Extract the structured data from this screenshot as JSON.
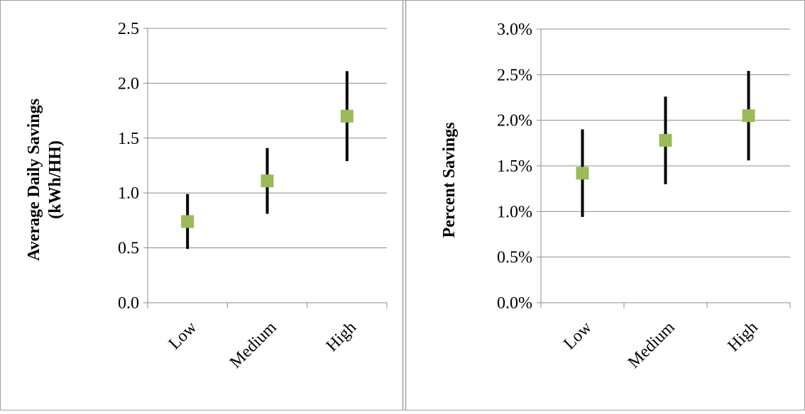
{
  "chart_data": [
    {
      "type": "errorbar",
      "ylabel": [
        "Average Daily Savings",
        "(kWh/HH)"
      ],
      "categories": [
        "Low",
        "Medium",
        "High"
      ],
      "values": [
        0.74,
        1.11,
        1.7
      ],
      "errors": [
        0.25,
        0.3,
        0.41
      ],
      "color": "#9bbb59",
      "error_color": "#000000",
      "grid": true,
      "ylim": [
        0,
        2.5
      ],
      "yticks": [
        {
          "value": 0,
          "label": "0.0"
        },
        0.5,
        {
          "value": 1,
          "label": "1.0"
        },
        1.5,
        {
          "value": 2,
          "label": "2.0"
        },
        2.5
      ]
    },
    {
      "type": "errorbar",
      "ylabel": [
        "Percent Savings"
      ],
      "categories": [
        "Low",
        "Medium",
        "High"
      ],
      "values": [
        1.42,
        1.78,
        2.05
      ],
      "errors": [
        0.48,
        0.48,
        0.49
      ],
      "color": "#9bbb59",
      "error_color": "#000000",
      "grid": true,
      "ylim": [
        0,
        3
      ],
      "yticks": [
        {
          "value": 0,
          "label": "0.0%"
        },
        {
          "value": 0.5,
          "label": "0.5%"
        },
        {
          "value": 1,
          "label": "1.0%"
        },
        {
          "value": 1.5,
          "label": "1.5%"
        },
        {
          "value": 2,
          "label": "2.0%"
        },
        {
          "value": 2.5,
          "label": "2.5%"
        },
        {
          "value": 3,
          "label": "3.0%"
        }
      ]
    }
  ]
}
